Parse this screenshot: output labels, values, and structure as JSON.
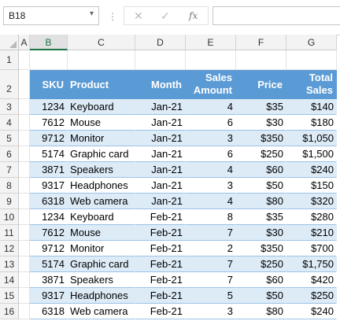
{
  "namebox": {
    "value": "B18"
  },
  "formula_bar": {
    "cancel": "✕",
    "enter": "✓",
    "fx": "fx",
    "value": ""
  },
  "columns": [
    "A",
    "B",
    "C",
    "D",
    "E",
    "F",
    "G"
  ],
  "selected_column": "B",
  "rows": [
    "1",
    "2",
    "3",
    "4",
    "5",
    "6",
    "7",
    "8",
    "9",
    "10",
    "11",
    "12",
    "13",
    "14",
    "15",
    "16"
  ],
  "table": {
    "headers": [
      "SKU",
      "Product",
      "Month",
      "Sales\nAmount",
      "Price",
      "Total\nSales"
    ],
    "rows": [
      [
        "1234",
        "Keyboard",
        "Jan-21",
        "4",
        "$35",
        "$140"
      ],
      [
        "7612",
        "Mouse",
        "Jan-21",
        "6",
        "$30",
        "$180"
      ],
      [
        "9712",
        "Monitor",
        "Jan-21",
        "3",
        "$350",
        "$1,050"
      ],
      [
        "5174",
        "Graphic card",
        "Jan-21",
        "6",
        "$250",
        "$1,500"
      ],
      [
        "3871",
        "Speakers",
        "Jan-21",
        "4",
        "$60",
        "$240"
      ],
      [
        "9317",
        "Headphones",
        "Jan-21",
        "3",
        "$50",
        "$150"
      ],
      [
        "6318",
        "Web camera",
        "Jan-21",
        "4",
        "$80",
        "$320"
      ],
      [
        "1234",
        "Keyboard",
        "Feb-21",
        "8",
        "$35",
        "$280"
      ],
      [
        "7612",
        "Mouse",
        "Feb-21",
        "7",
        "$30",
        "$210"
      ],
      [
        "9712",
        "Monitor",
        "Feb-21",
        "2",
        "$350",
        "$700"
      ],
      [
        "5174",
        "Graphic card",
        "Feb-21",
        "7",
        "$250",
        "$1,750"
      ],
      [
        "3871",
        "Speakers",
        "Feb-21",
        "7",
        "$60",
        "$420"
      ],
      [
        "9317",
        "Headphones",
        "Feb-21",
        "5",
        "$50",
        "$250"
      ],
      [
        "6318",
        "Web camera",
        "Feb-21",
        "3",
        "$80",
        "$240"
      ]
    ]
  },
  "colors": {
    "header_fill": "#5b9bd5",
    "band_fill": "#ddebf7",
    "band_border": "#9bc2e6",
    "accent": "#217346"
  }
}
